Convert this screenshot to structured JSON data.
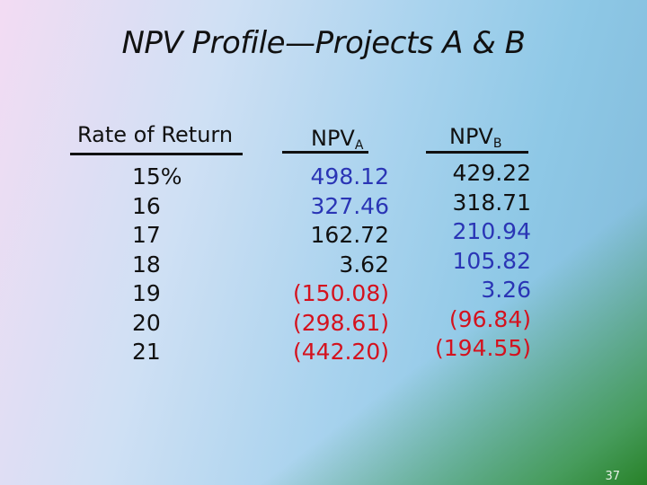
{
  "slide": {
    "title": "NPV Profile—Projects A & B",
    "page_number": "37"
  },
  "table": {
    "headers": {
      "rate": "Rate of Return",
      "npv_a_main": "NPV",
      "npv_a_sub": "A",
      "npv_b_main": "NPV",
      "npv_b_sub": "B"
    },
    "rates": [
      "15%",
      "16",
      "17",
      "18",
      "19",
      "20",
      "21"
    ],
    "npv_a": [
      "498.12",
      "327.46",
      "162.72",
      "3.62",
      "(150.08)",
      "(298.61)",
      "(442.20)"
    ],
    "npv_b": [
      "429.22",
      "318.71",
      "210.94",
      "105.82",
      "3.26",
      "(96.84)",
      "(194.55)"
    ]
  },
  "colors": {
    "positive": "#2a35b5",
    "negative": "#d4121e"
  }
}
